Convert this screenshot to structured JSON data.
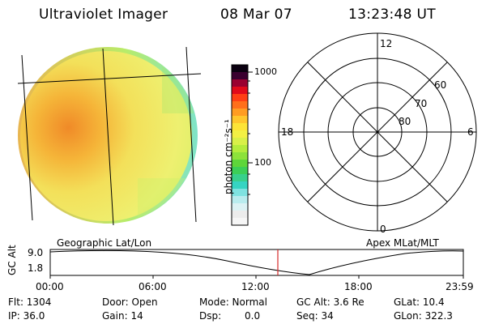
{
  "header": {
    "instrument": "Ultraviolet Imager",
    "date": "08 Mar 07",
    "time": "13:23:48 UT"
  },
  "colorbar": {
    "label": "photon cm⁻²s⁻¹",
    "ticks": [
      "1000",
      "100"
    ]
  },
  "polar_plot": {
    "lat_labels": [
      "60",
      "70",
      "80"
    ],
    "mlt_labels": [
      "12",
      "18",
      "6",
      "0"
    ]
  },
  "panel_labels": {
    "left": "Geographic Lat/Lon",
    "right": "Apex MLat/MLT"
  },
  "altitude_plot": {
    "ylabel": "GC Alt",
    "ytick_top": "9.0",
    "ytick_bottom": "1.8",
    "x_ticks": [
      "00:00",
      "06:00",
      "12:00",
      "18:00",
      "23:59"
    ],
    "marker_color": "#d42a2a"
  },
  "status": {
    "flt": "Flt: 1304",
    "door": "Door: Open",
    "mode": "Mode: Normal",
    "gc_alt": "GC Alt: 3.6 Re",
    "glat": "GLat:  10.4",
    "ip": "IP: 36.0",
    "gain": "Gain: 14",
    "dsp_label": "Dsp:",
    "dsp_value": "0.0",
    "seq": "Seq: 34",
    "glon": "GLon: 322.3"
  }
}
